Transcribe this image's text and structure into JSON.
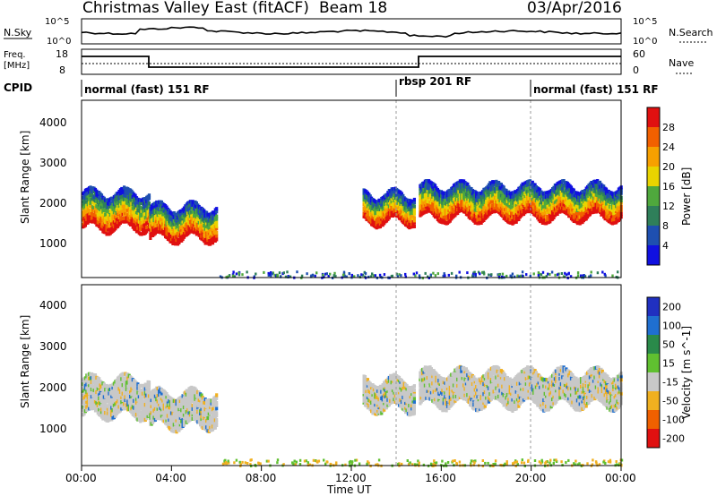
{
  "header": {
    "title": "Christmas Valley East (fitACF)",
    "beam": "Beam 18",
    "date": "03/Apr/2016"
  },
  "noise_panel": {
    "left_label": "N.Sky",
    "right_label": "N.Search",
    "left_ticks": [
      "10^5",
      "10^0"
    ],
    "right_ticks": [
      "10^5",
      "10^0"
    ]
  },
  "freq_panel": {
    "left_label_line1": "Freq.",
    "left_label_line2": "[MHz]",
    "right_label": "Nave",
    "left_ticks": [
      "18",
      "8"
    ],
    "right_ticks": [
      "60",
      "0"
    ]
  },
  "cpid": {
    "label": "CPID",
    "segments": [
      {
        "text": "normal (fast) 151 RF",
        "start_hr": 0,
        "end_hr": 14
      },
      {
        "text": "rbsp 201 RF",
        "start_hr": 14,
        "end_hr": 19
      },
      {
        "text": "normal (fast) 151 RF",
        "start_hr": 19,
        "end_hr": 24
      }
    ]
  },
  "axes": {
    "xlabel": "Time UT",
    "x_ticks": [
      "00:00",
      "04:00",
      "08:00",
      "12:00",
      "16:00",
      "20:00",
      "00:00"
    ],
    "ylabel": "Slant Range [km]",
    "y_ticks": [
      "1000",
      "2000",
      "3000",
      "4000"
    ]
  },
  "power_scale": {
    "label": "Power [dB]",
    "ticks": [
      "4",
      "8",
      "12",
      "16",
      "20",
      "24",
      "28"
    ],
    "colors": [
      "#1010e0",
      "#1e4fb0",
      "#2f7f5a",
      "#4fa83d",
      "#e9d400",
      "#f7a000",
      "#f26000",
      "#e01010"
    ]
  },
  "velocity_scale": {
    "label": "Velocity [m s^-1]",
    "ticks": [
      "200",
      "100",
      "50",
      "15",
      "-15",
      "-50",
      "-100",
      "-200"
    ],
    "colors": [
      "#2030c0",
      "#1f6fd0",
      "#2a8a4a",
      "#60c030",
      "#c8c8c8",
      "#f0b020",
      "#f06000",
      "#e01010"
    ]
  },
  "chart_data": [
    {
      "type": "heatmap",
      "title": "",
      "xlabel": "Time UT",
      "ylabel": "Slant Range [km]",
      "xlim": [
        0,
        24
      ],
      "ylim": [
        180,
        4500
      ],
      "colorbar_label": "Power [dB]",
      "colorbar_range": [
        0,
        30
      ],
      "scatter_bands": [
        {
          "start_hr": 0.0,
          "end_hr": 3.0,
          "center_km": 1900,
          "width_km": 900
        },
        {
          "start_hr": 3.0,
          "end_hr": 6.0,
          "center_km": 1600,
          "width_km": 800
        },
        {
          "start_hr": 12.5,
          "end_hr": 14.8,
          "center_km": 1950,
          "width_km": 700
        },
        {
          "start_hr": 15.0,
          "end_hr": 24.0,
          "center_km": 2100,
          "width_km": 800
        }
      ]
    },
    {
      "type": "heatmap",
      "title": "",
      "xlabel": "Time UT",
      "ylabel": "Slant Range [km]",
      "xlim": [
        0,
        24
      ],
      "ylim": [
        180,
        4500
      ],
      "colorbar_label": "Velocity [m s^-1]",
      "colorbar_range": [
        -250,
        250
      ],
      "scatter_bands": [
        {
          "start_hr": 0.0,
          "end_hr": 3.0,
          "center_km": 1900,
          "width_km": 900
        },
        {
          "start_hr": 3.0,
          "end_hr": 6.0,
          "center_km": 1600,
          "width_km": 800
        },
        {
          "start_hr": 12.5,
          "end_hr": 14.8,
          "center_km": 1950,
          "width_km": 700
        },
        {
          "start_hr": 15.0,
          "end_hr": 24.0,
          "center_km": 2100,
          "width_km": 800
        }
      ]
    }
  ]
}
